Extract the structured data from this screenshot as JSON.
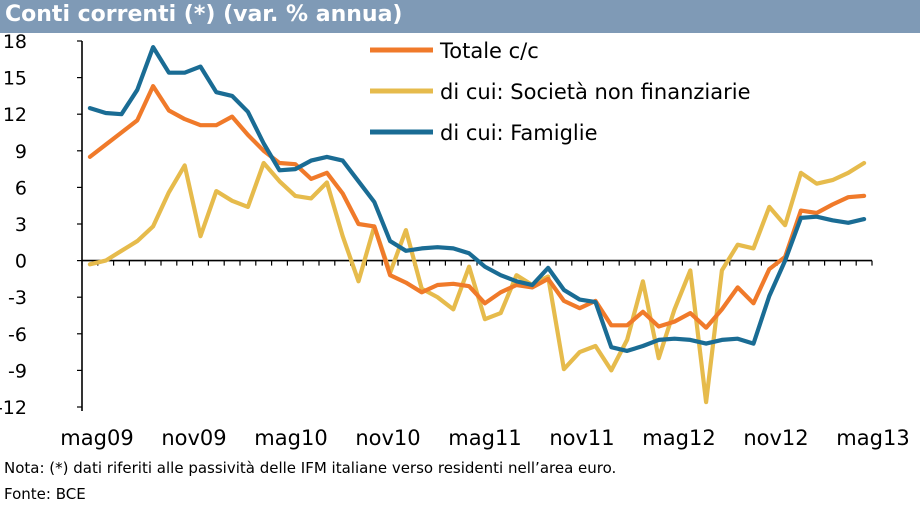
{
  "chart_data": {
    "type": "line",
    "title": "Conti correnti (*) (var. % annua)",
    "ylim": [
      -12,
      18
    ],
    "yticks": [
      18,
      15,
      12,
      9,
      6,
      3,
      0,
      -3,
      -6,
      -9,
      -12
    ],
    "xlabels": [
      "mag09",
      "nov09",
      "mag10",
      "nov10",
      "mag11",
      "nov11",
      "mag12",
      "nov12",
      "mag13"
    ],
    "grid": false,
    "legend_position": "top-right",
    "x": [
      "mag09",
      "giu09",
      "lug09",
      "ago09",
      "set09",
      "ott09",
      "nov09",
      "dic09",
      "gen10",
      "feb10",
      "mar10",
      "apr10",
      "mag10",
      "giu10",
      "lug10",
      "ago10",
      "set10",
      "ott10",
      "nov10",
      "dic10",
      "gen11",
      "feb11",
      "mar11",
      "apr11",
      "mag11",
      "giu11",
      "lug11",
      "ago11",
      "set11",
      "ott11",
      "nov11",
      "dic11",
      "gen12",
      "feb12",
      "mar12",
      "apr12",
      "mag12",
      "giu12",
      "lug12",
      "ago12",
      "set12",
      "ott12",
      "nov12",
      "dic12",
      "gen13",
      "feb13",
      "mar13",
      "apr13",
      "mag13",
      "giu13"
    ],
    "series": [
      {
        "name": "Totale c/c",
        "color": "#f07a2a",
        "values": [
          8.5,
          9.5,
          10.5,
          11.5,
          14.3,
          12.3,
          11.6,
          11.1,
          11.1,
          11.8,
          10.3,
          9.0,
          8.0,
          7.9,
          6.7,
          7.2,
          5.5,
          3.0,
          2.8,
          -1.2,
          -1.8,
          -2.6,
          -2.0,
          -1.9,
          -2.1,
          -3.5,
          -2.6,
          -2.0,
          -2.2,
          -1.5,
          -3.3,
          -3.9,
          -3.3,
          -5.3,
          -5.3,
          -4.2,
          -5.4,
          -5.0,
          -4.3,
          -5.5,
          -4.0,
          -2.2,
          -3.5,
          -0.7,
          0.3,
          4.1,
          3.9,
          4.6,
          5.2,
          5.3
        ]
      },
      {
        "name": "di cui: Società non finanziarie",
        "color": "#e6bb4c",
        "values": [
          -0.3,
          0.0,
          0.8,
          1.6,
          2.8,
          5.6,
          7.8,
          2.0,
          5.7,
          4.9,
          4.4,
          8.0,
          6.5,
          5.3,
          5.1,
          6.4,
          2.0,
          -1.7,
          2.8,
          -1.0,
          2.5,
          -2.3,
          -3.0,
          -4.0,
          -0.5,
          -4.8,
          -4.3,
          -1.2,
          -2.0,
          -1.3,
          -8.9,
          -7.5,
          -7.0,
          -9.0,
          -6.5,
          -1.7,
          -8.0,
          -4.0,
          -0.8,
          -11.6,
          -0.8,
          1.3,
          1.0,
          4.4,
          2.9,
          7.2,
          6.3,
          6.6,
          7.2,
          8.0
        ]
      },
      {
        "name": "di cui: Famiglie",
        "color": "#1a6c94",
        "values": [
          12.5,
          12.1,
          12.0,
          14.0,
          17.5,
          15.4,
          15.4,
          15.9,
          13.8,
          13.5,
          12.2,
          9.6,
          7.4,
          7.5,
          8.2,
          8.5,
          8.2,
          6.5,
          4.8,
          1.6,
          0.8,
          1.0,
          1.1,
          1.0,
          0.6,
          -0.5,
          -1.2,
          -1.7,
          -2.0,
          -0.6,
          -2.4,
          -3.2,
          -3.4,
          -7.1,
          -7.4,
          -7.0,
          -6.5,
          -6.4,
          -6.5,
          -6.8,
          -6.5,
          -6.4,
          -6.8,
          -2.9,
          0.0,
          3.5,
          3.6,
          3.3,
          3.1,
          3.4
        ]
      }
    ]
  },
  "footnotes": {
    "note": "Nota: (*) dati riferiti alle passività delle IFM italiane verso residenti nell’area euro.",
    "source": "Fonte: BCE"
  }
}
